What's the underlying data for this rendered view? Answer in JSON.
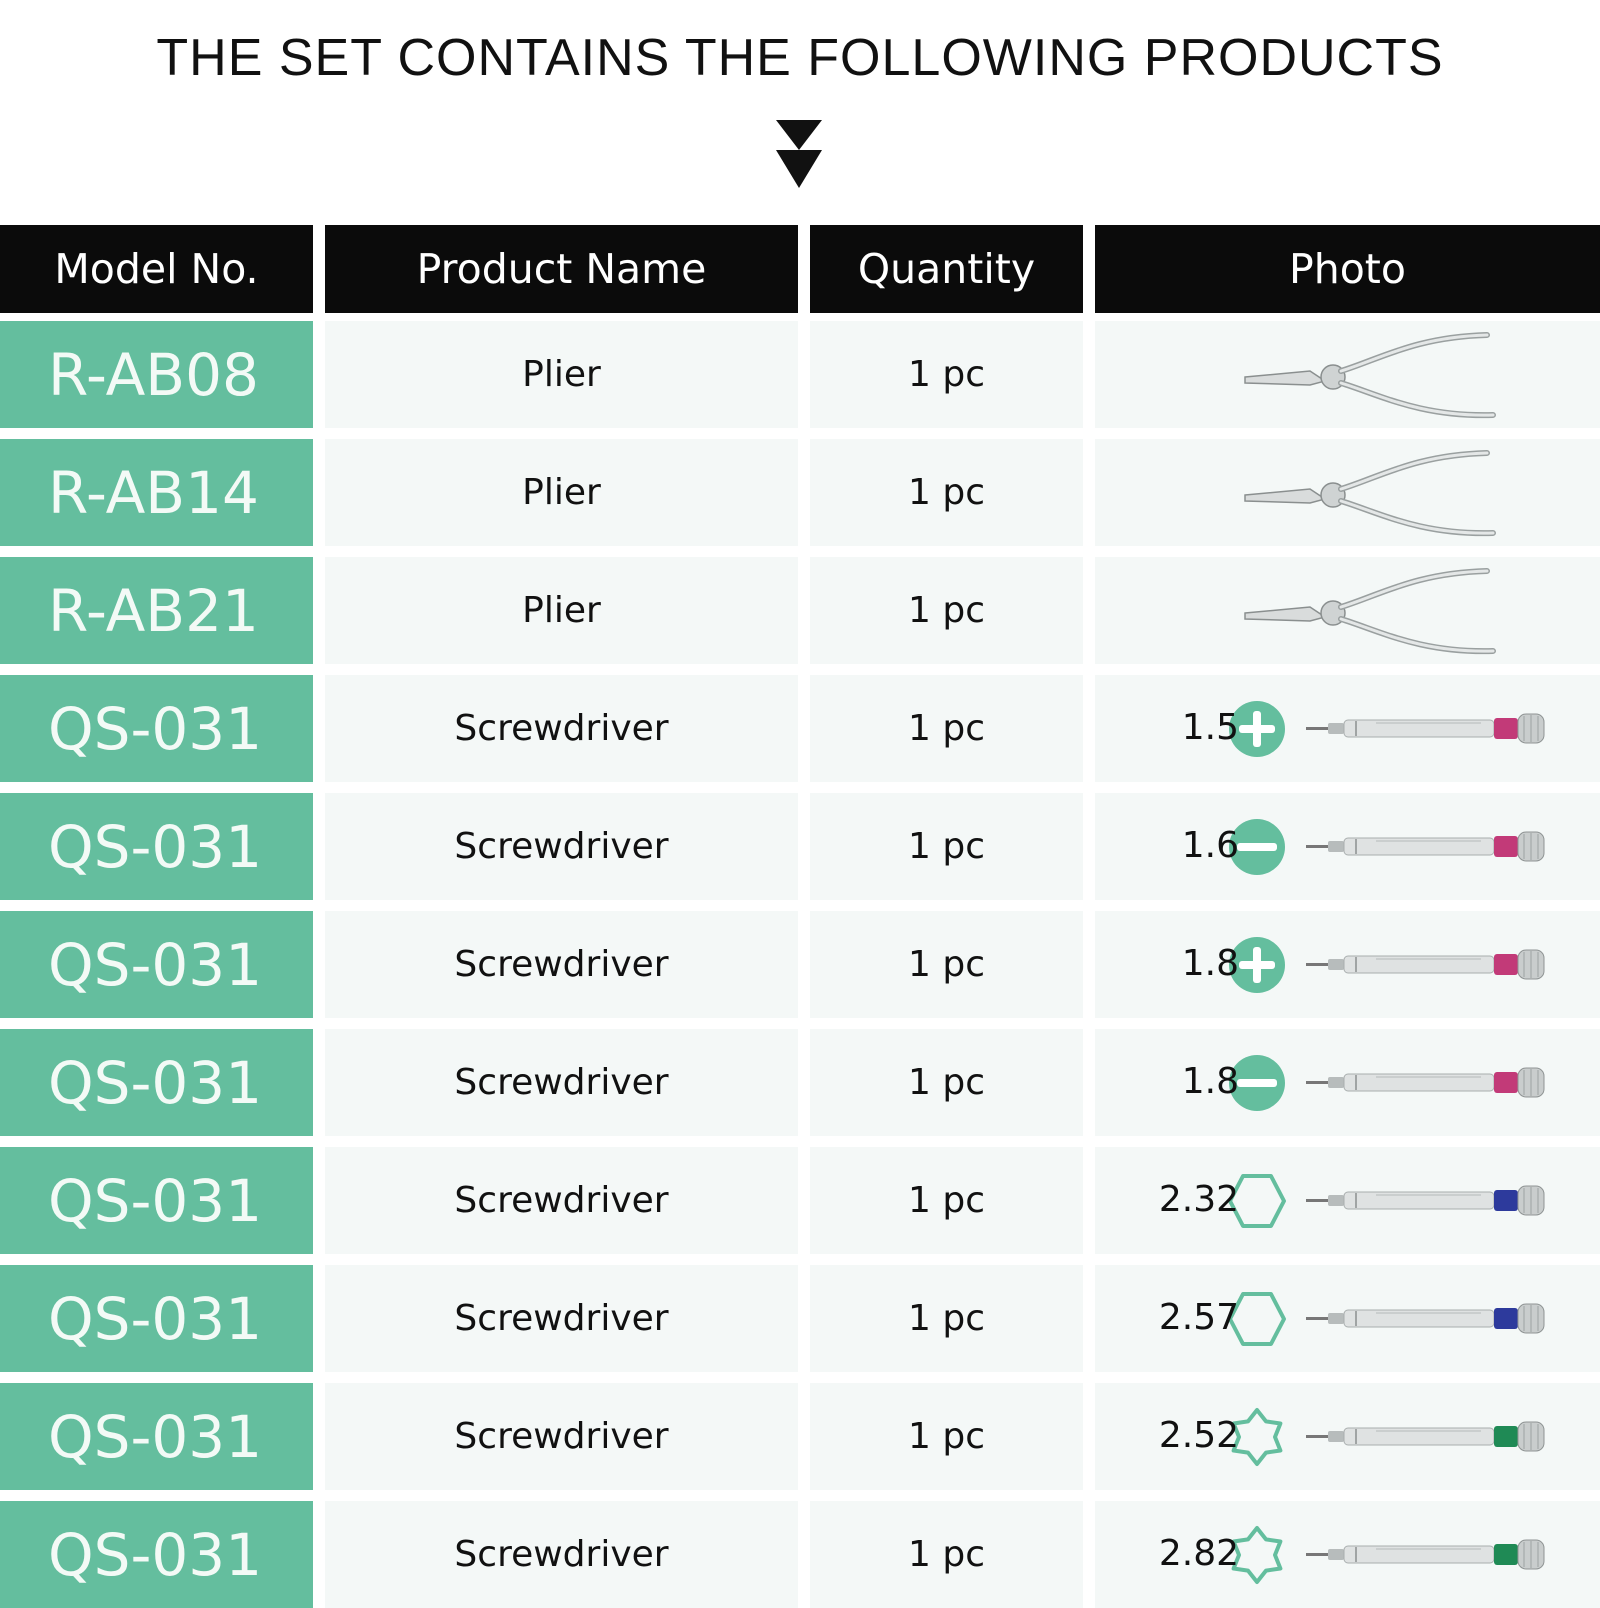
{
  "title": "THE SET CONTAINS THE FOLLOWING PRODUCTS",
  "icons": {
    "arrow": "double-down-arrow-icon"
  },
  "colors": {
    "header_bg": "#0b0b0b",
    "model_bg": "#64be9e",
    "row_bg": "#f4f8f7",
    "tip_icon": "#64be9e"
  },
  "table": {
    "headers": [
      "Model No.",
      "Product Name",
      "Quantity",
      "Photo"
    ],
    "rows": [
      {
        "model": "R-AB08",
        "name": "Plier",
        "qty": "1 pc",
        "photo": "plier-icon"
      },
      {
        "model": "R-AB14",
        "name": "Plier",
        "qty": "1 pc",
        "photo": "plier-icon"
      },
      {
        "model": "R-AB21",
        "name": "Plier",
        "qty": "1 pc",
        "photo": "plier-icon"
      },
      {
        "model": "QS-031",
        "name": "Screwdriver",
        "qty": "1 pc",
        "size": "1.5",
        "tip": "phillips-icon",
        "cap_color": "#c23a78"
      },
      {
        "model": "QS-031",
        "name": "Screwdriver",
        "qty": "1 pc",
        "size": "1.6",
        "tip": "flat-icon",
        "cap_color": "#c23a78"
      },
      {
        "model": "QS-031",
        "name": "Screwdriver",
        "qty": "1 pc",
        "size": "1.8",
        "tip": "phillips-icon",
        "cap_color": "#c23a78"
      },
      {
        "model": "QS-031",
        "name": "Screwdriver",
        "qty": "1 pc",
        "size": "1.8",
        "tip": "flat-icon",
        "cap_color": "#c23a78"
      },
      {
        "model": "QS-031",
        "name": "Screwdriver",
        "qty": "1 pc",
        "size": "2.32",
        "tip": "hex-icon",
        "cap_color": "#2d3a9c"
      },
      {
        "model": "QS-031",
        "name": "Screwdriver",
        "qty": "1 pc",
        "size": "2.57",
        "tip": "hex-icon",
        "cap_color": "#2d3a9c"
      },
      {
        "model": "QS-031",
        "name": "Screwdriver",
        "qty": "1 pc",
        "size": "2.52",
        "tip": "torx-icon",
        "cap_color": "#1f8a55"
      },
      {
        "model": "QS-031",
        "name": "Screwdriver",
        "qty": "1 pc",
        "size": "2.82",
        "tip": "torx-icon",
        "cap_color": "#1f8a55"
      }
    ]
  }
}
